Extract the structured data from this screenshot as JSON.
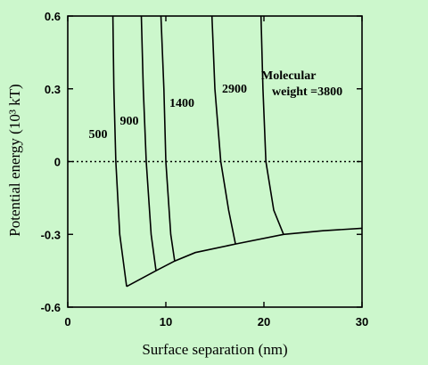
{
  "colors": {
    "background": "#ccf7cc",
    "ink": "#000000"
  },
  "chart_data": {
    "type": "line",
    "xlabel": "Surface separation (nm)",
    "ylabel": "Potential energy (10³ kT)",
    "xlim": [
      0,
      30
    ],
    "ylim": [
      -0.6,
      0.6
    ],
    "x_ticks": [
      0,
      10,
      20,
      30
    ],
    "x_tick_labels": [
      "0",
      "10",
      "20",
      "30"
    ],
    "y_ticks": [
      0.6,
      0.3,
      0,
      -0.3,
      -0.6
    ],
    "y_tick_labels": [
      "0.6",
      "0.3",
      "0",
      "-0.3",
      "-0.6"
    ],
    "zero_line": "dotted",
    "grid": false,
    "series": [
      {
        "label": "500",
        "points": [
          [
            4.6,
            0.6
          ],
          [
            4.7,
            0.3
          ],
          [
            4.9,
            0.0
          ],
          [
            5.3,
            -0.3
          ],
          [
            6.0,
            -0.515
          ]
        ]
      },
      {
        "label": "900",
        "points": [
          [
            7.5,
            0.6
          ],
          [
            7.7,
            0.3
          ],
          [
            8.0,
            0.0
          ],
          [
            8.5,
            -0.3
          ],
          [
            9.0,
            -0.45
          ]
        ]
      },
      {
        "label": "1400",
        "points": [
          [
            9.5,
            0.6
          ],
          [
            9.8,
            0.3
          ],
          [
            10.0,
            0.0
          ],
          [
            10.5,
            -0.3
          ],
          [
            10.9,
            -0.41
          ]
        ]
      },
      {
        "label": "2900",
        "points": [
          [
            14.7,
            0.6
          ],
          [
            15.0,
            0.3
          ],
          [
            15.6,
            0.0
          ],
          [
            16.4,
            -0.2
          ],
          [
            17.1,
            -0.34
          ]
        ]
      },
      {
        "label": "Molecular weight =3800",
        "points": [
          [
            19.7,
            0.6
          ],
          [
            19.9,
            0.3
          ],
          [
            20.2,
            0.0
          ],
          [
            21.0,
            -0.2
          ],
          [
            22.0,
            -0.3
          ]
        ]
      },
      {
        "label": "",
        "points": [
          [
            6.0,
            -0.515
          ],
          [
            9.0,
            -0.45
          ],
          [
            10.9,
            -0.41
          ],
          [
            13.0,
            -0.375
          ],
          [
            17.1,
            -0.34
          ],
          [
            22.0,
            -0.3
          ],
          [
            26.0,
            -0.285
          ],
          [
            30.0,
            -0.275
          ]
        ]
      }
    ]
  }
}
